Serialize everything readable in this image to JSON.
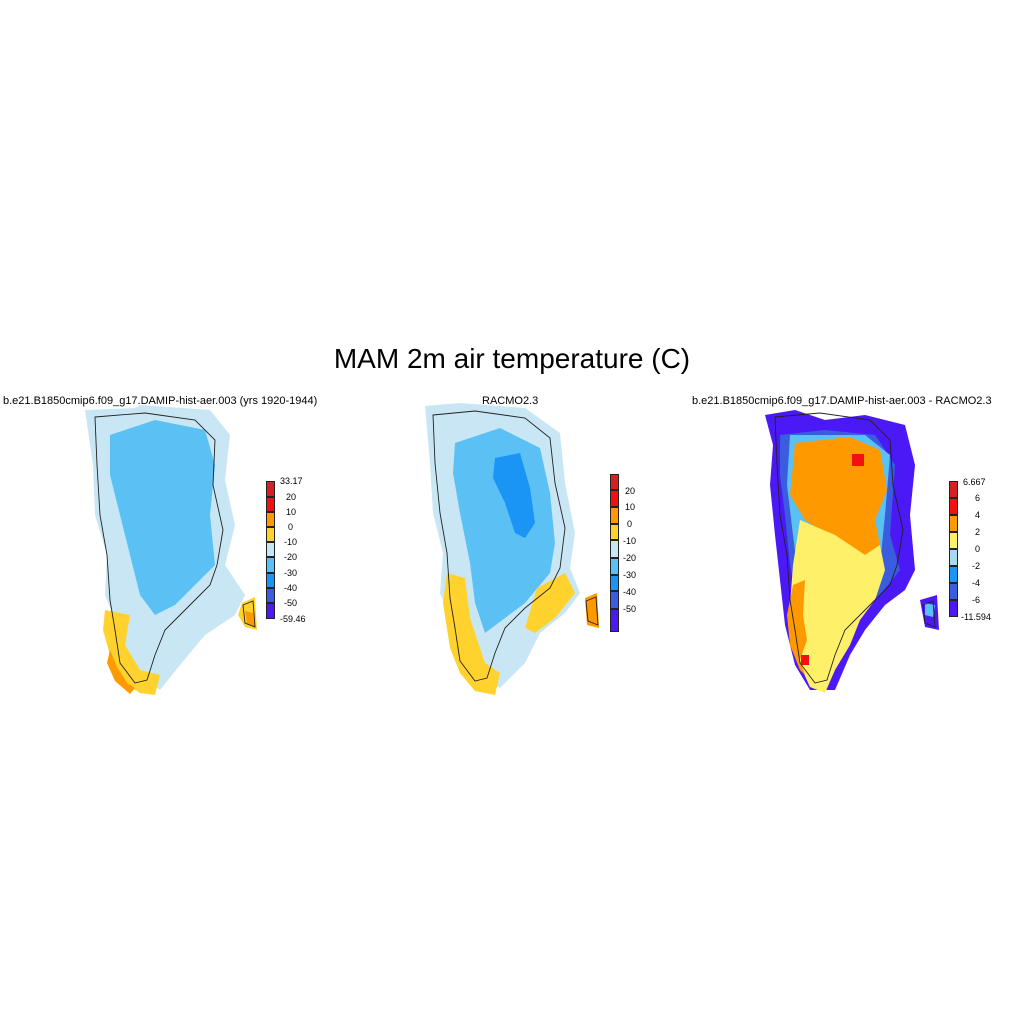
{
  "title": "MAM 2m air temperature (C)",
  "panels": [
    {
      "id": "model",
      "title": "b.e21.B1850cmip6.f09_g17.DAMIP-hist-aer.003 (yrs 1920-1944)",
      "colorbar": {
        "labels": [
          "33.17",
          "20",
          "10",
          "0",
          "-10",
          "-20",
          "-30",
          "-40",
          "-50",
          "-59.46"
        ],
        "colors": [
          "#d62023",
          "#f21010",
          "#ff9900",
          "#ffd22e",
          "#c8e6f4",
          "#5bc1f5",
          "#1a95f5",
          "#3a5ddf",
          "#4b19f5"
        ]
      }
    },
    {
      "id": "racmo",
      "title": "RACMO2.3",
      "colorbar": {
        "labels": [
          "20",
          "10",
          "0",
          "-10",
          "-20",
          "-30",
          "-40",
          "-50"
        ],
        "colors": [
          "#d62023",
          "#f21010",
          "#ff9900",
          "#ffd22e",
          "#c8e6f4",
          "#5bc1f5",
          "#1a95f5",
          "#3a5ddf",
          "#4b19f5"
        ]
      }
    },
    {
      "id": "diff",
      "title": "b.e21.B1850cmip6.f09_g17.DAMIP-hist-aer.003 - RACMO2.3",
      "colorbar": {
        "labels": [
          "6.667",
          "6",
          "4",
          "2",
          "0",
          "-2",
          "-4",
          "-6",
          "-11.594"
        ],
        "colors": [
          "#d62023",
          "#f21010",
          "#ff9900",
          "#fff06a",
          "#a8d9f0",
          "#1a95f5",
          "#3a5ddf",
          "#4b19f5"
        ]
      }
    }
  ]
}
